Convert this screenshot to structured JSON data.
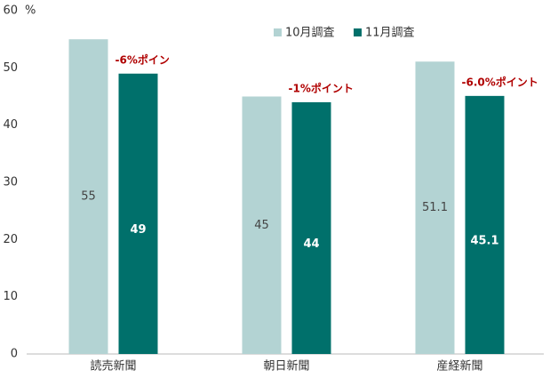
{
  "chart_data": {
    "type": "bar",
    "y_unit": "%",
    "categories": [
      "読売新聞",
      "朝日新聞",
      "産経新聞"
    ],
    "series": [
      {
        "name": "10月調査",
        "color": "#b3d3d3",
        "values": [
          55,
          45,
          51.1
        ]
      },
      {
        "name": "11月調査",
        "color": "#00706b",
        "values": [
          49,
          44,
          45.1
        ]
      }
    ],
    "annotations": [
      "-6%ポイン",
      "-1%ポイント",
      "-6.0%ポイント"
    ],
    "annotation_color": "#b00000",
    "ylim": [
      0,
      60
    ],
    "yticks": [
      0,
      10,
      20,
      30,
      40,
      50,
      60
    ],
    "grid": false,
    "legend": "top"
  }
}
